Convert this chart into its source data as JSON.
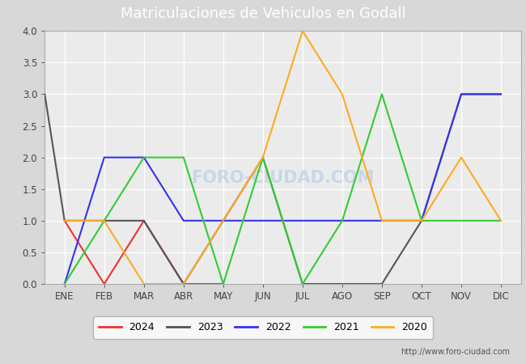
{
  "title": "Matriculaciones de Vehiculos en Godall",
  "months": [
    "ENE",
    "FEB",
    "MAR",
    "ABR",
    "MAY",
    "JUN",
    "JUL",
    "AGO",
    "SEP",
    "OCT",
    "NOV",
    "DIC"
  ],
  "series": {
    "2024": [
      1,
      0,
      1,
      0,
      0,
      null,
      null,
      null,
      null,
      null,
      null,
      null
    ],
    "2023": [
      1,
      1,
      1,
      0,
      1,
      2,
      0,
      0,
      0,
      1,
      3,
      3
    ],
    "2022": [
      0,
      2,
      2,
      1,
      1,
      1,
      1,
      1,
      1,
      1,
      3,
      3
    ],
    "2021": [
      0,
      1,
      2,
      2,
      0,
      2,
      0,
      1,
      3,
      1,
      1,
      1
    ],
    "2020": [
      1,
      1,
      0,
      0,
      1,
      2,
      4,
      3,
      1,
      1,
      2,
      1
    ]
  },
  "series_pre": {
    "2023": 3
  },
  "colors": {
    "2024": "#ee3333",
    "2023": "#555555",
    "2022": "#3333ee",
    "2021": "#33cc33",
    "2020": "#ffaa22"
  },
  "ylim": [
    0.0,
    4.0
  ],
  "yticks": [
    0.0,
    0.5,
    1.0,
    1.5,
    2.0,
    2.5,
    3.0,
    3.5,
    4.0
  ],
  "background_color": "#d8d8d8",
  "plot_bg_color": "#ebebeb",
  "title_bg_color": "#4a80c0",
  "title_color": "#ffffff",
  "title_fontsize": 13,
  "footer_text": "http://www.foro-ciudad.com",
  "watermark": "FORO-CIUDAD.COM",
  "legend_years": [
    "2024",
    "2023",
    "2022",
    "2021",
    "2020"
  ]
}
